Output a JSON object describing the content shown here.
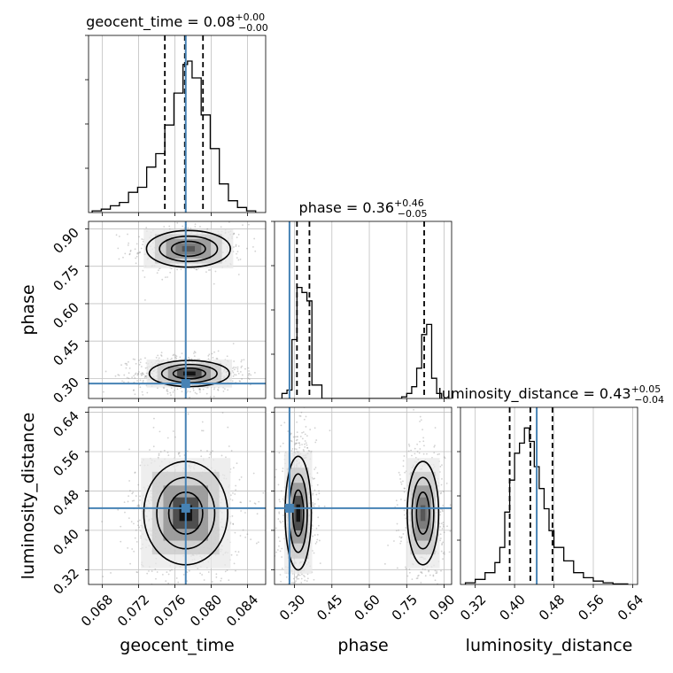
{
  "chart_data": {
    "type": "corner",
    "parameters": [
      "geocent_time",
      "phase",
      "luminosity_distance"
    ],
    "truths": {
      "geocent_time": 0.0772,
      "phase": 0.28,
      "luminosity_distance": 0.445
    },
    "colors": {
      "truth": "#4682b4",
      "line": "#000000",
      "grid": "#c0c0c0",
      "points": "#7f7f7f"
    },
    "grid": true,
    "diagonals": [
      {
        "param": "geocent_time",
        "title": {
          "main": "geocent_time = 0.08",
          "sup": "+0.00",
          "sub": "−0.00"
        },
        "xlim": [
          0.0665,
          0.086
        ],
        "quantiles": [
          0.0749,
          0.0771,
          0.0791
        ],
        "hist": {
          "edges": [
            0.0669,
            0.0679,
            0.0689,
            0.0699,
            0.0709,
            0.0719,
            0.0729,
            0.0739,
            0.0749,
            0.0759,
            0.0769,
            0.0774,
            0.0779,
            0.0789,
            0.0799,
            0.0809,
            0.0819,
            0.0829,
            0.0839,
            0.0849
          ],
          "counts": [
            0.01,
            0.02,
            0.04,
            0.06,
            0.12,
            0.15,
            0.27,
            0.35,
            0.52,
            0.71,
            0.88,
            0.9,
            0.8,
            0.58,
            0.38,
            0.17,
            0.07,
            0.03,
            0.01
          ]
        }
      },
      {
        "param": "phase",
        "title": {
          "main": "phase = 0.36",
          "sup": "+0.46",
          "sub": "−0.05"
        },
        "xlim": [
          0.22,
          0.93
        ],
        "quantiles": [
          0.31,
          0.36,
          0.82
        ],
        "hist": {
          "edges": [
            0.25,
            0.27,
            0.29,
            0.31,
            0.33,
            0.35,
            0.37,
            0.39,
            0.41,
            0.43,
            0.45,
            0.47,
            0.49,
            0.51,
            0.53,
            0.55,
            0.57,
            0.59,
            0.61,
            0.63,
            0.65,
            0.67,
            0.69,
            0.71,
            0.73,
            0.75,
            0.77,
            0.79,
            0.81,
            0.83,
            0.85,
            0.87,
            0.89
          ],
          "counts": [
            0.03,
            0.05,
            0.35,
            0.66,
            0.63,
            0.58,
            0.08,
            0.08,
            0,
            0,
            0,
            0,
            0,
            0,
            0,
            0,
            0,
            0,
            0,
            0,
            0,
            0,
            0,
            0,
            0.01,
            0.03,
            0.07,
            0.18,
            0.38,
            0.44,
            0.12,
            0.03
          ]
        }
      },
      {
        "param": "luminosity_distance",
        "title": {
          "main": "luminosity_distance = 0.43",
          "sup": "+0.05",
          "sub": "−0.04"
        },
        "xlim": [
          0.29,
          0.65
        ],
        "quantiles": [
          0.39,
          0.432,
          0.477
        ],
        "hist": {
          "edges": [
            0.3,
            0.32,
            0.34,
            0.36,
            0.37,
            0.38,
            0.39,
            0.4,
            0.41,
            0.42,
            0.43,
            0.44,
            0.45,
            0.46,
            0.47,
            0.48,
            0.5,
            0.52,
            0.54,
            0.56,
            0.58,
            0.6,
            0.63
          ],
          "counts": [
            0.01,
            0.03,
            0.07,
            0.13,
            0.22,
            0.43,
            0.62,
            0.78,
            0.84,
            0.93,
            0.85,
            0.7,
            0.57,
            0.45,
            0.32,
            0.22,
            0.14,
            0.07,
            0.04,
            0.02,
            0.01,
            0.003
          ]
        }
      }
    ],
    "ticks": {
      "geocent_time": [
        0.068,
        0.072,
        0.076,
        0.08,
        0.084
      ],
      "phase": [
        0.3,
        0.45,
        0.6,
        0.75,
        0.9
      ],
      "luminosity_distance": [
        0.32,
        0.4,
        0.48,
        0.56,
        0.64
      ]
    },
    "tick_labels": {
      "geocent_time": [
        "0.068",
        "0.072",
        "0.076",
        "0.080",
        "0.084"
      ],
      "phase": [
        "0.30",
        "0.45",
        "0.60",
        "0.75",
        "0.90"
      ],
      "luminosity_distance": [
        "0.32",
        "0.40",
        "0.48",
        "0.56",
        "0.64"
      ]
    },
    "ylims": {
      "phase": [
        0.22,
        0.93
      ],
      "luminosity_distance": [
        0.29,
        0.65
      ]
    },
    "pairs": [
      {
        "x": "geocent_time",
        "y": "phase",
        "modes": [
          {
            "cx": 0.0775,
            "cy": 0.82,
            "sx": 0.0022,
            "sy": 0.035,
            "w": 0.55
          },
          {
            "cx": 0.0776,
            "cy": 0.32,
            "sx": 0.0021,
            "sy": 0.025,
            "w": 1.0
          }
        ]
      },
      {
        "x": "geocent_time",
        "y": "luminosity_distance",
        "modes": [
          {
            "cx": 0.0772,
            "cy": 0.435,
            "sx": 0.0022,
            "sy": 0.05,
            "w": 1.0
          }
        ]
      },
      {
        "x": "phase",
        "y": "luminosity_distance",
        "modes": [
          {
            "cx": 0.315,
            "cy": 0.435,
            "sx": 0.025,
            "sy": 0.055,
            "w": 1.0
          },
          {
            "cx": 0.815,
            "cy": 0.435,
            "sx": 0.03,
            "sy": 0.05,
            "w": 0.65
          }
        ]
      }
    ]
  }
}
